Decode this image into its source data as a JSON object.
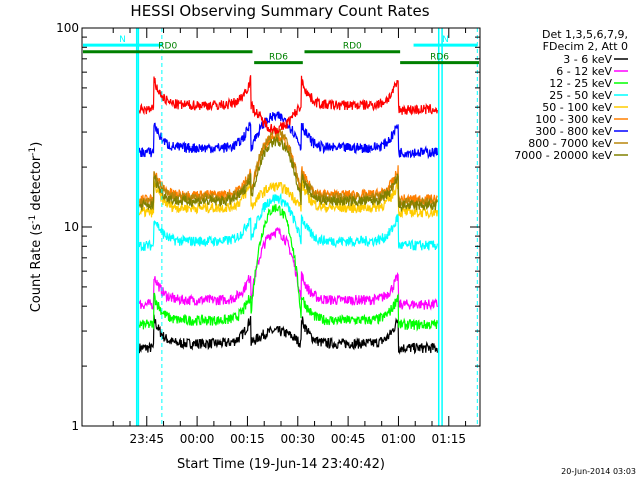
{
  "chart_data": {
    "type": "line",
    "title": "HESSI Observing Summary Count Rates",
    "xlabel": "Start Time (19-Jun-14 23:40:42)",
    "ylabel_main": "Count Rate (s",
    "ylabel_sup": "-1",
    "ylabel_rest": " detector",
    "ylabel_sup2": "-1",
    "ylabel_end": ")",
    "yscale": "log",
    "ylim": [
      1,
      100
    ],
    "y_ticks": [
      {
        "value": 1,
        "label": "1"
      },
      {
        "value": 10,
        "label": "10"
      },
      {
        "value": 100,
        "label": "100"
      }
    ],
    "x_range_min": [
      -19.3,
      99.3
    ],
    "x_ticks": [
      {
        "min": 0,
        "label": "23:45"
      },
      {
        "min": 15,
        "label": "00:00"
      },
      {
        "min": 30,
        "label": "00:15"
      },
      {
        "min": 45,
        "label": "00:30"
      },
      {
        "min": 60,
        "label": "00:45"
      },
      {
        "min": 75,
        "label": "01:00"
      },
      {
        "min": 90,
        "label": "01:15"
      }
    ],
    "legend_header": [
      "Det 1,3,5,6,7,9,",
      "FDecim 2, Att 0"
    ],
    "legend_position": "outside-right",
    "series": [
      {
        "name": "3 - 6 keV",
        "color": "#000000",
        "day": 3.0,
        "night": 2.6
      },
      {
        "name": "6 - 12 keV",
        "color": "#ff00ff",
        "day": 9.5,
        "night": 4.3
      },
      {
        "name": "12 - 25 keV",
        "color": "#00ff00",
        "day": 12.5,
        "night": 3.4
      },
      {
        "name": "25 - 50 keV",
        "color": "#00ffff",
        "day": 14.0,
        "night": 8.5
      },
      {
        "name": "50 - 100 keV",
        "color": "#ffcc00",
        "day": 16.0,
        "night": 12.5
      },
      {
        "name": "100 - 300 keV",
        "color": "#ff7f00",
        "day": 29.0,
        "night": 14.5
      },
      {
        "name": "300 - 800 keV",
        "color": "#0000ff",
        "day": 36.0,
        "night": 25.0
      },
      {
        "name": "800 - 7000 keV",
        "color": "#b8860b",
        "day": 30.0,
        "night": 14.0
      },
      {
        "name": "7000 - 20000 keV",
        "color": "#808000",
        "day": 27.0,
        "night": 13.5
      },
      {
        "name": "",
        "color": "#ff0000",
        "day": 31.0,
        "night": 41.0
      }
    ],
    "night_intervals_min": [
      [
        2.0,
        31.0
      ],
      [
        46.0,
        75.0
      ]
    ],
    "saa_intervals_min": [
      [
        -3.0,
        -2.5
      ],
      [
        87.0,
        88.0
      ]
    ],
    "saa_color": "#00ffff",
    "annotations": [
      {
        "text": "N",
        "color": "#00ffff",
        "level": 82,
        "start_min": -19.3,
        "end_min": 4.5
      },
      {
        "text": "N",
        "color": "#00ffff",
        "level": 82,
        "start_min": 79.5,
        "end_min": 98.5
      },
      {
        "text": "RD0",
        "color": "#008000",
        "level": 76,
        "start_min": -19.3,
        "end_min": 31.5
      },
      {
        "text": "RD0",
        "color": "#008000",
        "level": 76,
        "start_min": 47.0,
        "end_min": 75.5
      },
      {
        "text": "RD6",
        "color": "#008000",
        "level": 67,
        "start_min": 32.0,
        "end_min": 46.5
      },
      {
        "text": "RD6",
        "color": "#008000",
        "level": 67,
        "start_min": 75.5,
        "end_min": 99.3
      }
    ],
    "dashed_markers_min": [
      4.5,
      98.5
    ],
    "footer_date": "20-Jun-2014 03:03"
  }
}
